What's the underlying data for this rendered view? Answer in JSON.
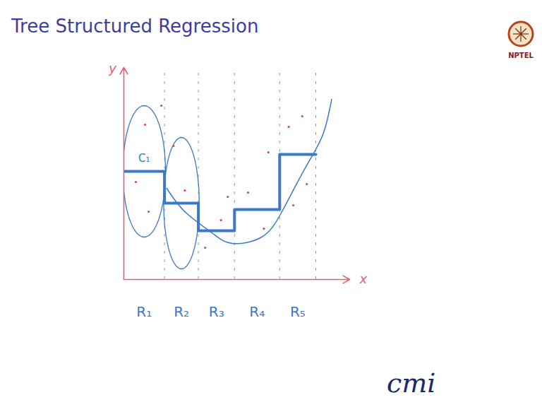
{
  "chart_data": {
    "type": "step",
    "title": "Tree Structured Regression",
    "x_label": "x",
    "y_label": "y",
    "xlim": [
      0,
      10
    ],
    "ylim": [
      0,
      10
    ],
    "tick_labels": false,
    "categories": [
      "R₁",
      "R₂",
      "R₃",
      "R₄",
      "R₅"
    ],
    "bins": [
      0,
      1.8,
      3.3,
      4.9,
      6.9,
      8.5
    ],
    "values": [
      5.1,
      3.6,
      2.3,
      3.3,
      5.9
    ],
    "color": "#3a78c8",
    "annotations": [
      "C₁"
    ],
    "curve": {
      "x": [
        1.9,
        2.7,
        3.9,
        4.8,
        6.1,
        7.0,
        8.0,
        8.8,
        9.2
      ],
      "values": [
        4.3,
        3.2,
        2.2,
        1.7,
        2.0,
        3.2,
        5.2,
        6.8,
        8.5
      ],
      "color": "#3a78c8"
    },
    "points": {
      "x": [
        0.94,
        0.53,
        1.1,
        1.66,
        2.2,
        2.7,
        3.6,
        4.3,
        4.6,
        5.5,
        6.4,
        6.2,
        7.3,
        7.9,
        8.1,
        7.5
      ],
      "values": [
        7.3,
        4.6,
        3.2,
        8.2,
        6.3,
        4.2,
        1.5,
        2.8,
        3.9,
        4.1,
        6.0,
        2.4,
        7.2,
        7.7,
        4.5,
        3.5
      ],
      "color": "#d64550"
    },
    "axis_color": "#e0606e",
    "logos": [
      "NPTEL",
      "cmi"
    ]
  }
}
